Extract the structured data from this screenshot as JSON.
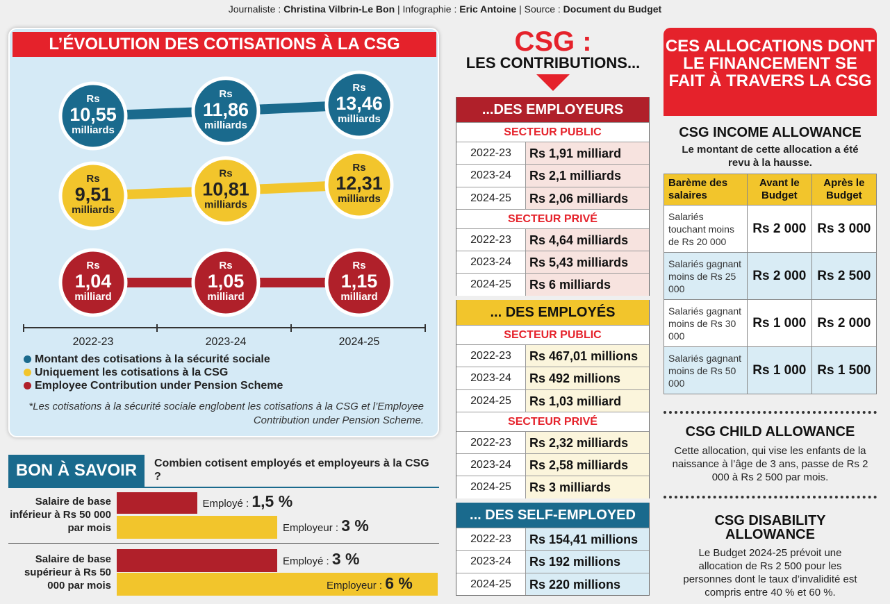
{
  "credits": {
    "journaliste_label": "Journaliste :",
    "journaliste": "Christina Vilbrin-Le Bon",
    "infographie_label": "| Infographie :",
    "infographie": "Eric Antoine",
    "source_label": "| Source :",
    "source": "Document du Budget"
  },
  "evolution": {
    "title": "L’ÉVOLUTION DES COTISATIONS À LA CSG",
    "years": [
      "2022-23",
      "2023-24",
      "2024-25"
    ],
    "series": [
      {
        "name": "Montant des cotisations à la sécurité sociale",
        "color": "#1a6a8d",
        "values": [
          10.55,
          11.86,
          13.46
        ],
        "labels": [
          "10,55",
          "11,86",
          "13,46"
        ],
        "unit": "milliards"
      },
      {
        "name": "Uniquement les cotisations à la CSG",
        "color": "#f2c52c",
        "values": [
          9.51,
          10.81,
          12.31
        ],
        "labels": [
          "9,51",
          "10,81",
          "12,31"
        ],
        "unit": "milliards"
      },
      {
        "name": "Employee Contribution under Pension Scheme",
        "color": "#b0202a",
        "values": [
          1.04,
          1.05,
          1.15
        ],
        "labels": [
          "1,04",
          "1,05",
          "1,15"
        ],
        "unit": "milliard"
      }
    ],
    "currency": "Rs",
    "footnote": "*Les cotisations à la sécurité sociale englobent les cotisations à la CSG et l’Employee Contribution under Pension Scheme."
  },
  "bon_a_savoir": {
    "title": "BON À SAVOIR",
    "question": "Combien cotisent employés et employeurs à la CSG ?",
    "groups": [
      {
        "label": "Salaire de base inférieur à Rs 50 000 par mois",
        "employe_label": "Employé :",
        "employe_value": "1,5 %",
        "employe_pct": 1.5,
        "employeur_label": "Employeur :",
        "employeur_value": "3 %",
        "employeur_pct": 3
      },
      {
        "label": "Salaire de base supérieur à Rs 50 000 par mois",
        "employe_label": "Employé :",
        "employe_value": "3 %",
        "employe_pct": 3,
        "employeur_label": "Employeur :",
        "employeur_value": "6 %",
        "employeur_pct": 6
      }
    ]
  },
  "contributions": {
    "title": "CSG :",
    "subtitle": "LES CONTRIBUTIONS...",
    "employeurs": {
      "title": "...DES EMPLOYEURS",
      "public_label": "SECTEUR PUBLIC",
      "public": [
        [
          "2022-23",
          "Rs 1,91 milliard"
        ],
        [
          "2023-24",
          "Rs 2,1 milliards"
        ],
        [
          "2024-25",
          "Rs 2,06 milliards"
        ]
      ],
      "prive_label": "SECTEUR PRIVÉ",
      "prive": [
        [
          "2022-23",
          "Rs 4,64 milliards"
        ],
        [
          "2023-24",
          "Rs 5,43 milliards"
        ],
        [
          "2024-25",
          "Rs 6 milliards"
        ]
      ]
    },
    "employes": {
      "title": "... DES EMPLOYÉS",
      "public_label": "SECTEUR PUBLIC",
      "public": [
        [
          "2022-23",
          "Rs 467,01 millions"
        ],
        [
          "2023-24",
          "Rs 492 millions"
        ],
        [
          "2024-25",
          "Rs 1,03 milliard"
        ]
      ],
      "prive_label": "SECTEUR PRIVÉ",
      "prive": [
        [
          "2022-23",
          "Rs 2,32 milliards"
        ],
        [
          "2023-24",
          "Rs 2,58 milliards"
        ],
        [
          "2024-25",
          "Rs 3 milliards"
        ]
      ]
    },
    "self_employed": {
      "title": "... DES SELF-EMPLOYED",
      "rows": [
        [
          "2022-23",
          "Rs 154,41 millions"
        ],
        [
          "2023-24",
          "Rs 192 millions"
        ],
        [
          "2024-25",
          "Rs 220 millions"
        ]
      ]
    }
  },
  "allocations": {
    "title": "CES ALLOCATIONS DONT LE FINANCEMENT SE FAIT À TRAVERS LA CSG",
    "income": {
      "title": "CSG INCOME ALLOWANCE",
      "desc": "Le montant de cette allocation a été revu à la hausse.",
      "headers": [
        "Barème des salaires",
        "Avant le Budget",
        "Après le Budget"
      ],
      "rows": [
        [
          "Salariés touchant moins de Rs 20 000",
          "Rs 2 000",
          "Rs 3 000"
        ],
        [
          "Salariés gagnant moins de Rs 25 000",
          "Rs 2 000",
          "Rs 2 500"
        ],
        [
          "Salariés gagnant moins de Rs 30 000",
          "Rs 1 000",
          "Rs 2 000"
        ],
        [
          "Salariés gagnant moins de Rs 50 000",
          "Rs 1 000",
          "Rs 1 500"
        ]
      ]
    },
    "child": {
      "title": "CSG CHILD ALLOWANCE",
      "desc": "Cette allocation, qui vise les enfants de la naissance à l’âge de 3 ans, passe de Rs 2 000 à Rs 2 500 par mois."
    },
    "disability": {
      "title": "CSG DISABILITY ALLOWANCE",
      "desc": "Le Budget 2024-25 prévoit une allocation de Rs 2 500 pour les personnes dont le taux d’invalidité est compris entre 40 % et 60 %."
    }
  }
}
